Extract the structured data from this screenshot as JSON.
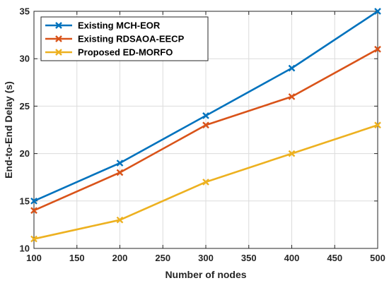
{
  "chart_data": {
    "type": "line",
    "title": "",
    "xlabel": "Number of nodes",
    "ylabel": "End-to-End Delay (s)",
    "x": [
      100,
      200,
      300,
      400,
      500
    ],
    "xlim": [
      100,
      500
    ],
    "ylim": [
      10,
      35
    ],
    "xticks": [
      100,
      150,
      200,
      250,
      300,
      350,
      400,
      450,
      500
    ],
    "yticks": [
      10,
      15,
      20,
      25,
      30,
      35
    ],
    "grid": true,
    "legend_position": "top-left",
    "series": [
      {
        "name": "Existing MCH-EOR",
        "values": [
          15,
          19,
          24,
          29,
          35
        ],
        "color": "#0072BD",
        "marker": "x"
      },
      {
        "name": "Existing RDSAOA-EECP",
        "values": [
          14,
          18,
          23,
          26,
          31
        ],
        "color": "#D95319",
        "marker": "x"
      },
      {
        "name": "Proposed ED-MORFO",
        "values": [
          11,
          13,
          17,
          20,
          23
        ],
        "color": "#EDB120",
        "marker": "x"
      }
    ]
  }
}
